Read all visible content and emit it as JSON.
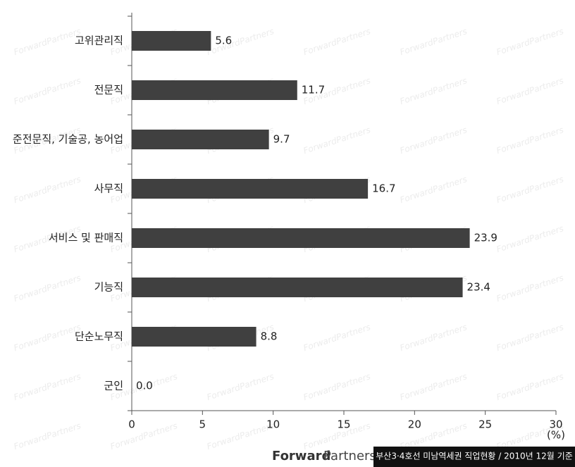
{
  "chart_data": {
    "type": "barh",
    "categories": [
      "고위관리직",
      "전문직",
      "준전문직, 기술공, 농어업",
      "사무직",
      "서비스 및 판매직",
      "기능직",
      "단순노무직",
      "군인"
    ],
    "values": [
      5.6,
      11.7,
      9.7,
      16.7,
      23.9,
      23.4,
      8.8,
      0.0
    ],
    "value_labels": [
      "5.6",
      "11.7",
      "9.7",
      "16.7",
      "23.9",
      "23.4",
      "8.8",
      "0.0"
    ],
    "color": "#404040",
    "xlim": [
      0,
      30
    ],
    "xticks": [
      0,
      5,
      10,
      15,
      20,
      25,
      30
    ],
    "x_unit": "(%)"
  },
  "watermark": "ForwardPartners",
  "footer": {
    "brand": [
      "Forward",
      "Partners"
    ],
    "caption": "부산3·4호선 미남역세권 직업현황 / 2010년 12월 기준"
  }
}
